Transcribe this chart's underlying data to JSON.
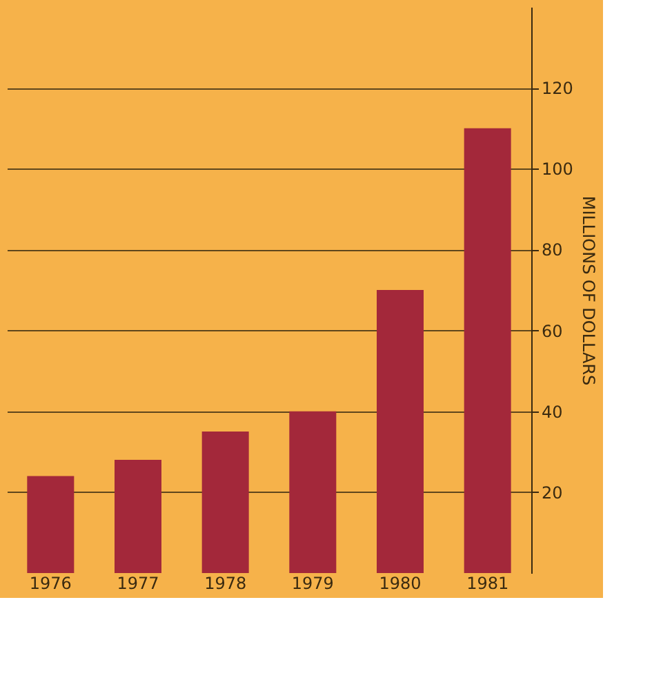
{
  "chart_data": {
    "type": "bar",
    "ylabel": "MILLIONS OF DOLLARS",
    "categories": [
      "1976",
      "1977",
      "1978",
      "1979",
      "1980",
      "1981"
    ],
    "values": [
      24,
      28,
      35,
      40,
      70,
      110
    ],
    "color": "#a3283a",
    "ylim": [
      0,
      140
    ],
    "yticks": [
      20,
      40,
      60,
      80,
      100,
      120
    ],
    "grid": true
  }
}
